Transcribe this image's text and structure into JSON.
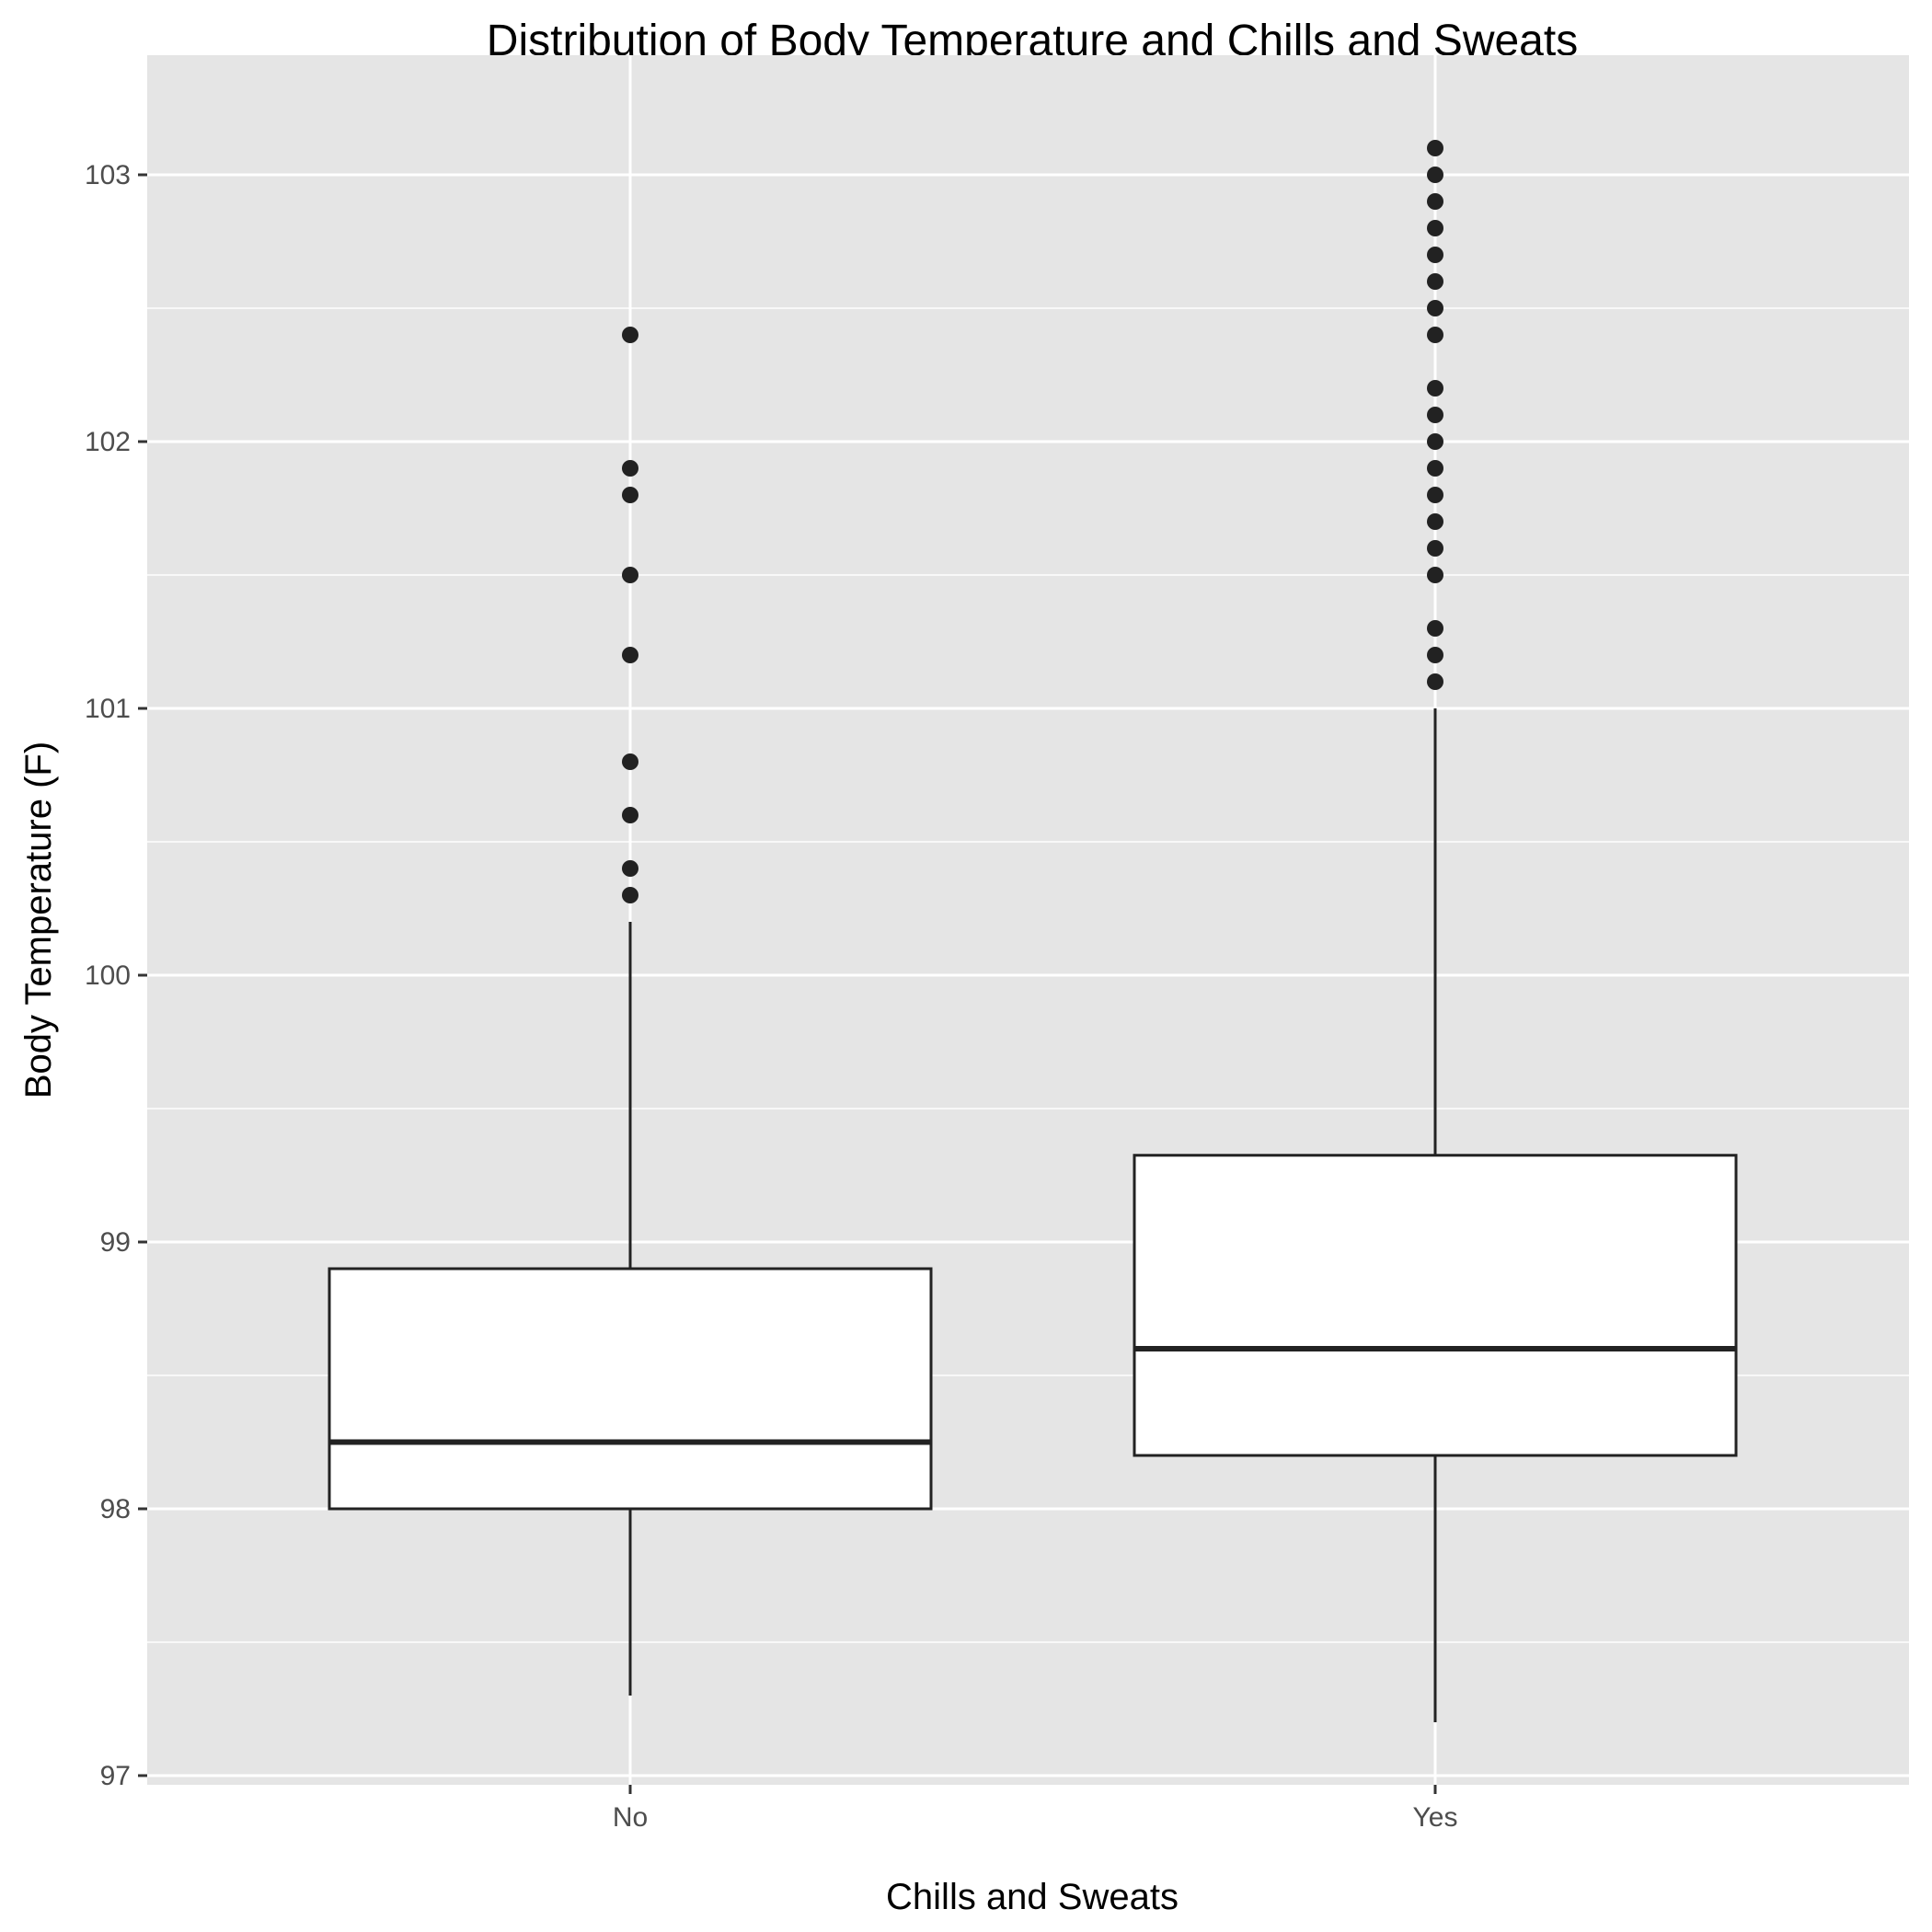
{
  "chart_data": {
    "type": "boxplot",
    "title": "Distribution of Body Temperature and Chills and Sweats",
    "xlabel": "Chills and Sweats",
    "ylabel": "Body Temperature (F)",
    "categories": [
      "No",
      "Yes"
    ],
    "y_ticks": [
      97,
      98,
      99,
      100,
      101,
      102,
      103
    ],
    "ylim": [
      96.9,
      103.5
    ],
    "grid": true,
    "boxes": [
      {
        "category": "No",
        "whisker_low": 97.3,
        "q1": 98.0,
        "median": 98.25,
        "q3": 98.9,
        "whisker_high": 100.2,
        "outliers": [
          100.3,
          100.4,
          100.6,
          100.8,
          101.2,
          101.5,
          101.8,
          101.9,
          102.4
        ]
      },
      {
        "category": "Yes",
        "whisker_low": 97.2,
        "q1": 98.2,
        "median": 98.6,
        "q3": 99.325,
        "whisker_high": 101.0,
        "outliers": [
          101.1,
          101.2,
          101.3,
          101.5,
          101.6,
          101.7,
          101.8,
          101.9,
          102.0,
          102.1,
          102.2,
          102.4,
          102.5,
          102.6,
          102.7,
          102.8,
          102.9,
          103.0,
          103.1
        ]
      }
    ],
    "colors": {
      "panel": "#e5e5e5",
      "grid": "#ffffff",
      "box_fill": "#ffffff",
      "stroke": "#222222",
      "tick_text": "#4d4d4d"
    }
  }
}
